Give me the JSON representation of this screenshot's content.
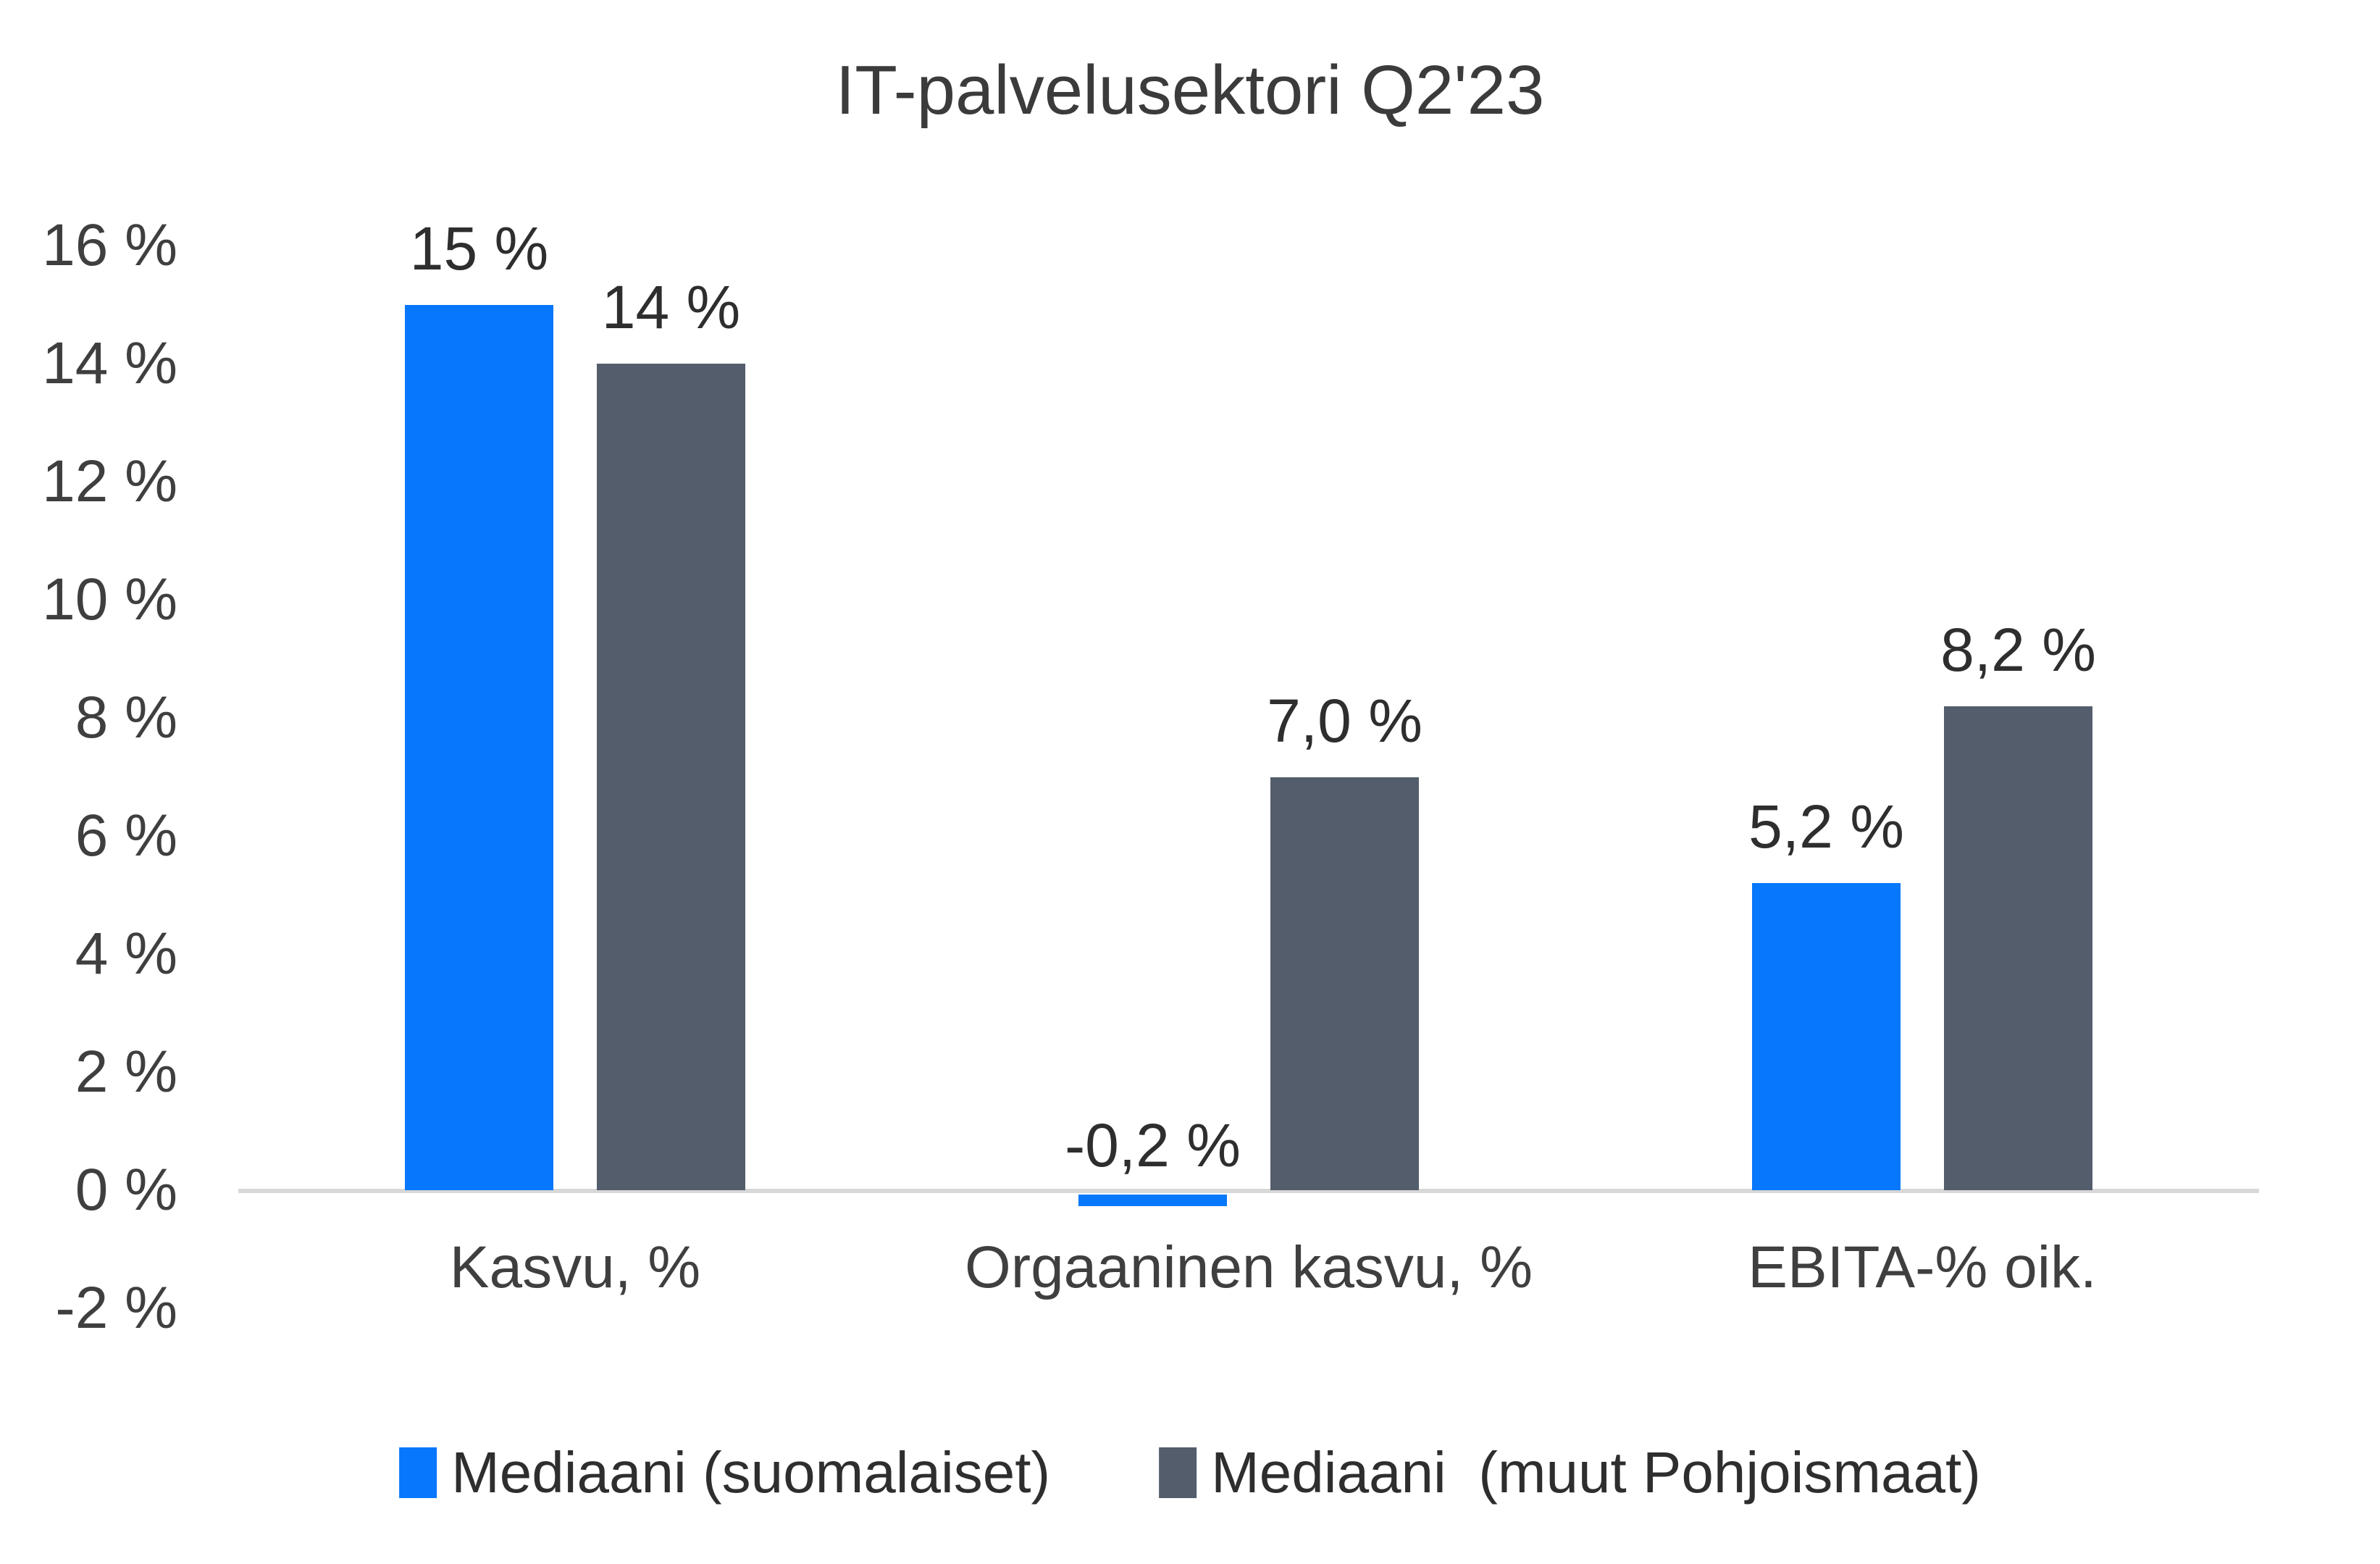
{
  "title": "IT-palvelusektori Q2'23",
  "colors": {
    "series_finnish_blue": "#0777FB",
    "series_nordic_gray": "#535D6C",
    "axis_line": "#d8d8d8",
    "text": "#3f3f3f",
    "background": "#ffffff"
  },
  "chart_data": {
    "type": "bar",
    "title": "IT-palvelusektori Q2'23",
    "categories": [
      "Kasvu, %",
      "Orgaaninen kasvu, %",
      "EBITA-% oik."
    ],
    "series": [
      {
        "name": "Mediaani (suomalaiset)",
        "color": "#0777FB",
        "values": [
          15,
          -0.2,
          5.2
        ],
        "labels": [
          "15 %",
          "-0,2 %",
          "5,2 %"
        ]
      },
      {
        "name": "Mediaani  (muut Pohjoismaat)",
        "color": "#535D6C",
        "values": [
          14,
          7.0,
          8.2
        ],
        "labels": [
          "14 %",
          "7,0 %",
          "8,2 %"
        ]
      }
    ],
    "xlabel": "",
    "ylabel": "",
    "ylim": [
      -2,
      16
    ],
    "ytick_step": 2,
    "ytick_labels": [
      "16 %",
      "14 %",
      "12 %",
      "10 %",
      "8 %",
      "6 %",
      "4 %",
      "2 %",
      "0 %",
      "-2 %"
    ],
    "grid": false,
    "legend_position": "bottom",
    "legend": [
      "Mediaani (suomalaiset)",
      "Mediaani  (muut Pohjoismaat)"
    ]
  }
}
